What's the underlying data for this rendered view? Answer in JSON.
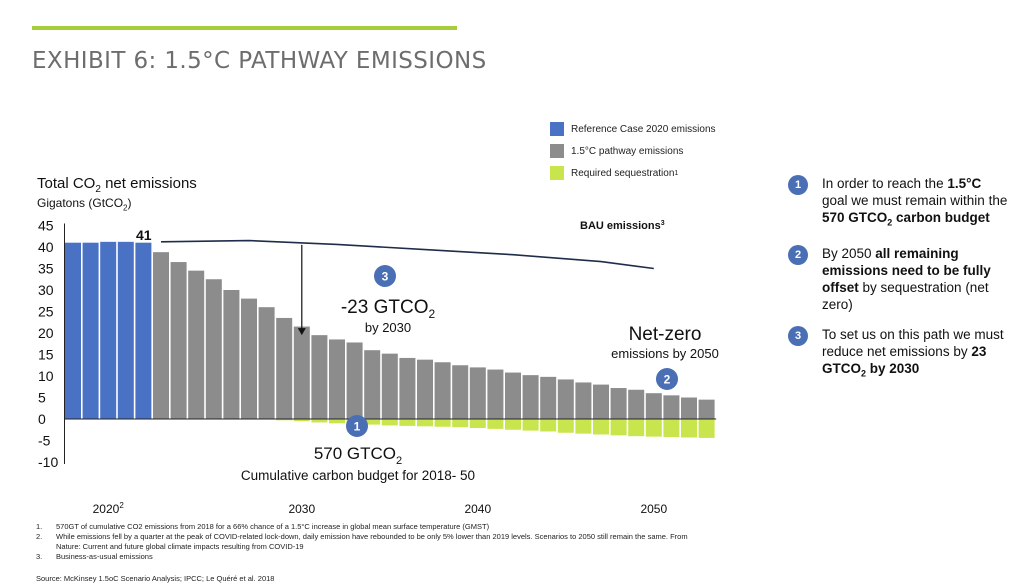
{
  "title": "EXHIBIT 6: 1.5°C PATHWAY EMISSIONS",
  "axis": {
    "title_line1": "Total CO",
    "title_line1_sub": "2",
    "title_line1_end": " net emissions",
    "title_line2": "Gigatons (GtCO",
    "title_line2_sub": "2",
    "title_line2_end": ")"
  },
  "legend": {
    "reference": "Reference Case 2020 emissions",
    "pathway": "1.5°C pathway emissions",
    "sequestration": "Required sequestration",
    "sequestration_sup": "1"
  },
  "colors": {
    "reference": "#4a72c4",
    "pathway": "#8c8c8c",
    "sequestration": "#c9e54d",
    "accent": "#a7cd3a",
    "badge": "#4a6fb5",
    "bau": "#1f2d4a"
  },
  "chart_data": {
    "type": "bar",
    "ylim": [
      -10,
      45
    ],
    "yticks": [
      45,
      40,
      35,
      30,
      25,
      20,
      15,
      10,
      5,
      0,
      -5,
      -10
    ],
    "xticks": [
      {
        "label": "2020",
        "sup": "2",
        "index": 2
      },
      {
        "label": "2030",
        "sup": "",
        "index": 13
      },
      {
        "label": "2040",
        "sup": "",
        "index": 23
      },
      {
        "label": "2050",
        "sup": "",
        "index": 33
      }
    ],
    "reference_values": [
      41,
      41,
      41.2,
      41.2,
      41
    ],
    "pathway_values": [
      38.8,
      36.5,
      34.5,
      32.5,
      30,
      28,
      26,
      23.5,
      21.5,
      19.5,
      18.5,
      17.8,
      16,
      15.2,
      14.2,
      13.8,
      13.2,
      12.5,
      12,
      11.5,
      10.8,
      10.2,
      9.8,
      9.2,
      8.5,
      8,
      7.2,
      6.8,
      6,
      5.5,
      5,
      4.5
    ],
    "sequestration_values": [
      0,
      0,
      0,
      0,
      0,
      0,
      0,
      -0.3,
      -0.5,
      -0.8,
      -1,
      -1.2,
      -1.3,
      -1.5,
      -1.6,
      -1.7,
      -1.8,
      -1.9,
      -2.1,
      -2.3,
      -2.5,
      -2.7,
      -2.9,
      -3.2,
      -3.4,
      -3.6,
      -3.8,
      -4,
      -4.1,
      -4.2,
      -4.3,
      -4.4
    ],
    "bau_label": "BAU emissions",
    "bau_sup": "3",
    "bau_values": [
      [
        5,
        41.2
      ],
      [
        10,
        41.5
      ],
      [
        15,
        40.6
      ],
      [
        20,
        39.4
      ],
      [
        25,
        38.2
      ],
      [
        30,
        36.6
      ],
      [
        33,
        35
      ]
    ],
    "peak_label": "41",
    "arrow_from": [
      13,
      40.5
    ],
    "arrow_to": [
      13,
      19.5
    ]
  },
  "annotations": {
    "a3": {
      "num": "3",
      "line1": "-23 GTCO",
      "line1_sub": "2",
      "line2": "by 2030"
    },
    "a2": {
      "num": "2",
      "line1": "Net-zero",
      "line2": "emissions by 2050"
    },
    "a1": {
      "num": "1",
      "line1": "570 GTCO",
      "line1_sub": "2",
      "line2": "Cumulative carbon budget for 2018- 50"
    }
  },
  "side_points": [
    {
      "num": "1",
      "parts": [
        {
          "t": "In order to reach the ",
          "b": false
        },
        {
          "t": "1.5°C",
          "b": true
        },
        {
          "t": " goal we must remain within the ",
          "b": false
        },
        {
          "t": "570 GTCO",
          "b": true
        },
        {
          "t": "2",
          "b": true,
          "sub": true
        },
        {
          "t": " carbon budget",
          "b": true
        }
      ]
    },
    {
      "num": "2",
      "parts": [
        {
          "t": "By 2050 ",
          "b": false
        },
        {
          "t": "all remaining emissions need to be fully offset",
          "b": true
        },
        {
          "t": " by sequestration (net zero)",
          "b": false
        }
      ]
    },
    {
      "num": "3",
      "parts": [
        {
          "t": "To set us on this path we must reduce net emissions by ",
          "b": false
        },
        {
          "t": "23 GTCO",
          "b": true
        },
        {
          "t": "2",
          "b": true,
          "sub": true
        },
        {
          "t": " by 2030",
          "b": true
        }
      ]
    }
  ],
  "footnotes": [
    {
      "n": "1.",
      "text": "570GT of cumulative CO2 emissions from 2018 for a 66% chance of a 1.5°C increase in global mean surface temperature (GMST)"
    },
    {
      "n": "2.",
      "text": "While emissions fell by a quarter at the peak of COVID-related lock-down, daily emission have rebounded to be only 5% lower than 2019 levels. Scenarios to 2050 still remain the same. From Nature: Current and future global climate impacts resulting from COVID-19"
    },
    {
      "n": "3.",
      "text": "Business-as-usual emissions"
    }
  ],
  "source": "Source: McKinsey 1.5oC Scenario Analysis; IPCC; Le Quéré et al. 2018"
}
